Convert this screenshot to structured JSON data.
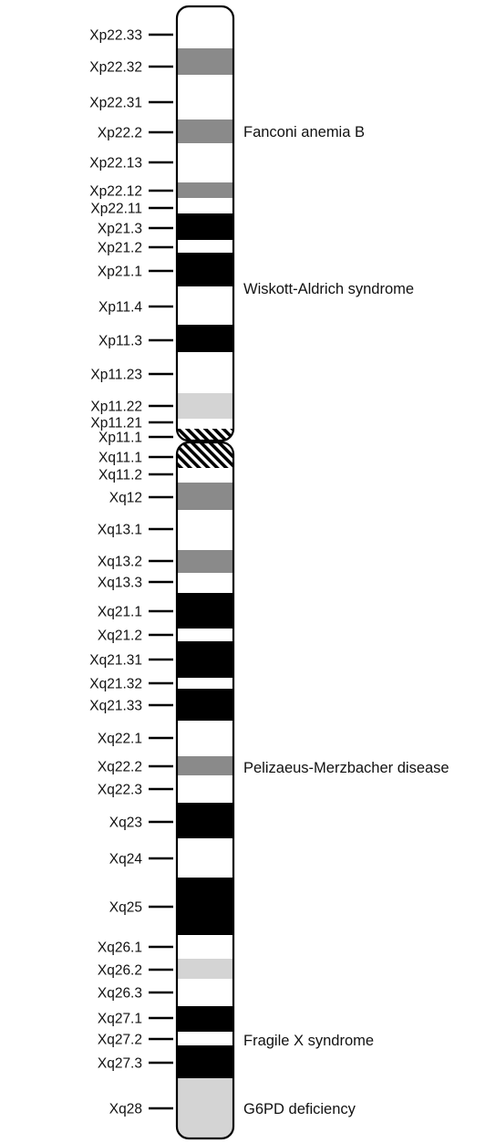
{
  "colors": {
    "white": "#ffffff",
    "dark_gray": "#8a8a8a",
    "light_gray": "#d4d4d4",
    "black": "#000000",
    "centromere_hatch": "#000000",
    "outline": "#000000"
  },
  "chromosome": {
    "bands": [
      {
        "label": "Xp22.33",
        "stain": "white"
      },
      {
        "label": "Xp22.32",
        "stain": "dark_gray"
      },
      {
        "label": "Xp22.31",
        "stain": "white"
      },
      {
        "label": "Xp22.2",
        "stain": "dark_gray"
      },
      {
        "label": "Xp22.13",
        "stain": "white"
      },
      {
        "label": "Xp22.12",
        "stain": "dark_gray"
      },
      {
        "label": "Xp22.11",
        "stain": "white"
      },
      {
        "label": "Xp21.3",
        "stain": "black"
      },
      {
        "label": "Xp21.2",
        "stain": "white"
      },
      {
        "label": "Xp21.1",
        "stain": "black"
      },
      {
        "label": "Xp11.4",
        "stain": "white"
      },
      {
        "label": "Xp11.3",
        "stain": "black"
      },
      {
        "label": "Xp11.23",
        "stain": "white"
      },
      {
        "label": "Xp11.22",
        "stain": "light_gray"
      },
      {
        "label": "Xp11.21",
        "stain": "white"
      },
      {
        "label": "Xp11.1",
        "stain": "centromere_hatch"
      },
      {
        "label": "Xq11.1",
        "stain": "centromere_hatch"
      },
      {
        "label": "Xq11.2",
        "stain": "white"
      },
      {
        "label": "Xq12",
        "stain": "dark_gray"
      },
      {
        "label": "Xq13.1",
        "stain": "white"
      },
      {
        "label": "Xq13.2",
        "stain": "dark_gray"
      },
      {
        "label": "Xq13.3",
        "stain": "white"
      },
      {
        "label": "Xq21.1",
        "stain": "black"
      },
      {
        "label": "Xq21.2",
        "stain": "white"
      },
      {
        "label": "Xq21.31",
        "stain": "black"
      },
      {
        "label": "Xq21.32",
        "stain": "white"
      },
      {
        "label": "Xq21.33",
        "stain": "black"
      },
      {
        "label": "Xq22.1",
        "stain": "white"
      },
      {
        "label": "Xq22.2",
        "stain": "dark_gray"
      },
      {
        "label": "Xq22.3",
        "stain": "white"
      },
      {
        "label": "Xq23",
        "stain": "black"
      },
      {
        "label": "Xq24",
        "stain": "white"
      },
      {
        "label": "Xq25",
        "stain": "black"
      },
      {
        "label": "Xq26.1",
        "stain": "white"
      },
      {
        "label": "Xq26.2",
        "stain": "light_gray"
      },
      {
        "label": "Xq26.3",
        "stain": "white"
      },
      {
        "label": "Xq27.1",
        "stain": "black"
      },
      {
        "label": "Xq27.2",
        "stain": "white"
      },
      {
        "label": "Xq27.3",
        "stain": "black"
      },
      {
        "label": "Xq28",
        "stain": "light_gray"
      }
    ],
    "diseases": [
      {
        "name": "Fanconi anemia B",
        "band": "Xp22.2"
      },
      {
        "name": "Wiskott-Aldrich syndrome",
        "band": "Xp11.4"
      },
      {
        "name": "Pelizaeus-Merzbacher disease",
        "band": "Xq22.2"
      },
      {
        "name": "Fragile X syndrome",
        "band": "Xq27.2"
      },
      {
        "name": "G6PD deficiency",
        "band": "Xq28"
      }
    ]
  }
}
